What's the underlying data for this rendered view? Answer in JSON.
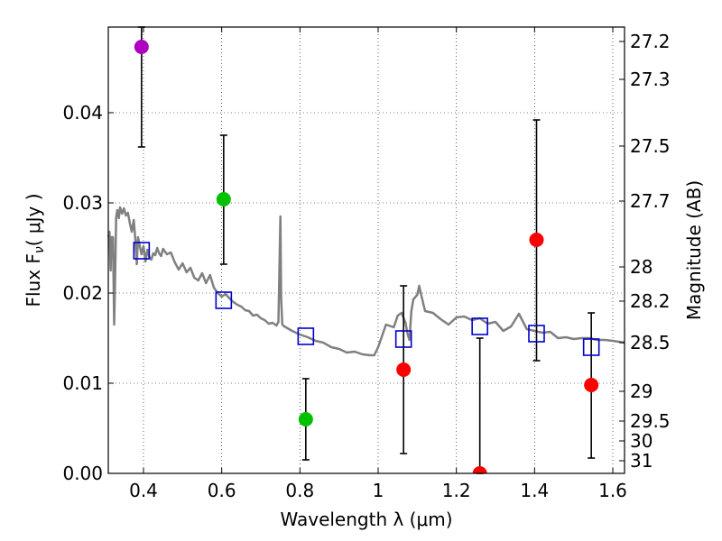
{
  "chart_data": {
    "type": "scatter",
    "xlabel": "Wavelength  λ (μm)",
    "ylabel": "Flux  F",
    "ylabel_sub": "ν",
    "ylabel_unit": "( μJy )",
    "y2label": "Magnitude (AB)",
    "xlim": [
      0.31,
      1.63
    ],
    "ylim": [
      0.0,
      0.0495
    ],
    "grid": true,
    "x_ticks": [
      0.4,
      0.6,
      0.8,
      1.0,
      1.2,
      1.4,
      1.6
    ],
    "x_tick_labels": [
      "0.4",
      "0.6",
      "0.8",
      "1",
      "1.2",
      "1.4",
      "1.6"
    ],
    "y_ticks": [
      0.0,
      0.01,
      0.02,
      0.03,
      0.04
    ],
    "y_tick_labels": [
      "0.00",
      "0.01",
      "0.02",
      "0.03",
      "0.04"
    ],
    "y2_ticks": [
      {
        "label": "27.2",
        "flux": 0.0479
      },
      {
        "label": "27.3",
        "flux": 0.0437
      },
      {
        "label": "27.5",
        "flux": 0.0363
      },
      {
        "label": "27.7",
        "flux": 0.0302
      },
      {
        "label": "28",
        "flux": 0.0229
      },
      {
        "label": "28.2",
        "flux": 0.0191
      },
      {
        "label": "28.5",
        "flux": 0.0145
      },
      {
        "label": "29",
        "flux": 0.0091
      },
      {
        "label": "29.5",
        "flux": 0.0058
      },
      {
        "label": "30",
        "flux": 0.0036
      },
      {
        "label": "31",
        "flux": 0.0014
      }
    ],
    "observed_points": [
      {
        "x": 0.395,
        "y": 0.0473,
        "err_low": 0.0362,
        "err_high": 0.0495,
        "color": "#b000c0"
      },
      {
        "x": 0.605,
        "y": 0.0304,
        "err_low": 0.0232,
        "err_high": 0.0375,
        "color": "#00c000"
      },
      {
        "x": 0.815,
        "y": 0.006,
        "err_low": 0.0015,
        "err_high": 0.0105,
        "color": "#00c000"
      },
      {
        "x": 1.065,
        "y": 0.0115,
        "err_low": 0.0022,
        "err_high": 0.0208,
        "color": "#ff0000"
      },
      {
        "x": 1.26,
        "y": 0.0,
        "err_low": 0.0,
        "err_high": 0.015,
        "color": "#ff0000"
      },
      {
        "x": 1.405,
        "y": 0.0259,
        "err_low": 0.0125,
        "err_high": 0.0392,
        "color": "#ff0000"
      },
      {
        "x": 1.545,
        "y": 0.0098,
        "err_low": 0.0017,
        "err_high": 0.0178,
        "color": "#ff0000"
      }
    ],
    "model_squares": [
      {
        "x": 0.395,
        "y": 0.0247
      },
      {
        "x": 0.605,
        "y": 0.0192
      },
      {
        "x": 0.815,
        "y": 0.0152
      },
      {
        "x": 1.065,
        "y": 0.0149
      },
      {
        "x": 1.26,
        "y": 0.0163
      },
      {
        "x": 1.405,
        "y": 0.0155
      },
      {
        "x": 1.545,
        "y": 0.014
      }
    ],
    "sed_curve": {
      "color": "#808080",
      "x": [
        0.31,
        0.313,
        0.316,
        0.318,
        0.322,
        0.325,
        0.327,
        0.33,
        0.333,
        0.337,
        0.34,
        0.345,
        0.35,
        0.355,
        0.36,
        0.365,
        0.37,
        0.375,
        0.38,
        0.383,
        0.386,
        0.39,
        0.395,
        0.4,
        0.405,
        0.41,
        0.415,
        0.42,
        0.425,
        0.43,
        0.435,
        0.44,
        0.445,
        0.45,
        0.46,
        0.47,
        0.48,
        0.49,
        0.5,
        0.51,
        0.52,
        0.53,
        0.54,
        0.55,
        0.56,
        0.57,
        0.58,
        0.59,
        0.6,
        0.61,
        0.62,
        0.63,
        0.64,
        0.65,
        0.66,
        0.67,
        0.68,
        0.69,
        0.7,
        0.71,
        0.72,
        0.73,
        0.74,
        0.745,
        0.75,
        0.752,
        0.755,
        0.76,
        0.78,
        0.8,
        0.82,
        0.84,
        0.86,
        0.88,
        0.9,
        0.92,
        0.94,
        0.96,
        0.98,
        0.99,
        1.0,
        1.02,
        1.04,
        1.05,
        1.06,
        1.07,
        1.075,
        1.08,
        1.085,
        1.09,
        1.1,
        1.105,
        1.11,
        1.12,
        1.14,
        1.16,
        1.18,
        1.2,
        1.22,
        1.24,
        1.26,
        1.28,
        1.3,
        1.32,
        1.34,
        1.36,
        1.38,
        1.4,
        1.42,
        1.44,
        1.46,
        1.48,
        1.5,
        1.52,
        1.54,
        1.56,
        1.58,
        1.6,
        1.63
      ],
      "y": [
        0.0262,
        0.0268,
        0.0225,
        0.0262,
        0.0262,
        0.0165,
        0.0208,
        0.0284,
        0.0292,
        0.0283,
        0.0295,
        0.0288,
        0.0294,
        0.0286,
        0.0289,
        0.0278,
        0.0268,
        0.0281,
        0.0255,
        0.0232,
        0.0262,
        0.0253,
        0.0243,
        0.0252,
        0.0235,
        0.0248,
        0.024,
        0.0237,
        0.0244,
        0.0242,
        0.025,
        0.0244,
        0.0241,
        0.0249,
        0.0243,
        0.0245,
        0.0234,
        0.0226,
        0.0233,
        0.0223,
        0.0228,
        0.0217,
        0.0214,
        0.0222,
        0.0211,
        0.022,
        0.0206,
        0.02,
        0.0196,
        0.0199,
        0.0194,
        0.019,
        0.0187,
        0.0185,
        0.0181,
        0.018,
        0.0175,
        0.0176,
        0.0172,
        0.017,
        0.0166,
        0.0167,
        0.0164,
        0.0168,
        0.0285,
        0.0195,
        0.0165,
        0.0163,
        0.0158,
        0.0154,
        0.0151,
        0.0147,
        0.0145,
        0.014,
        0.0138,
        0.0134,
        0.0135,
        0.0132,
        0.0131,
        0.0131,
        0.014,
        0.0165,
        0.0162,
        0.0175,
        0.0178,
        0.0167,
        0.0155,
        0.0148,
        0.018,
        0.0193,
        0.0198,
        0.0208,
        0.0198,
        0.018,
        0.0178,
        0.0171,
        0.0165,
        0.0173,
        0.0174,
        0.017,
        0.0172,
        0.0166,
        0.0168,
        0.0158,
        0.0163,
        0.0177,
        0.016,
        0.0158,
        0.0156,
        0.0157,
        0.015,
        0.0151,
        0.0149,
        0.015,
        0.015,
        0.0148,
        0.0148,
        0.0147,
        0.0145
      ]
    }
  }
}
